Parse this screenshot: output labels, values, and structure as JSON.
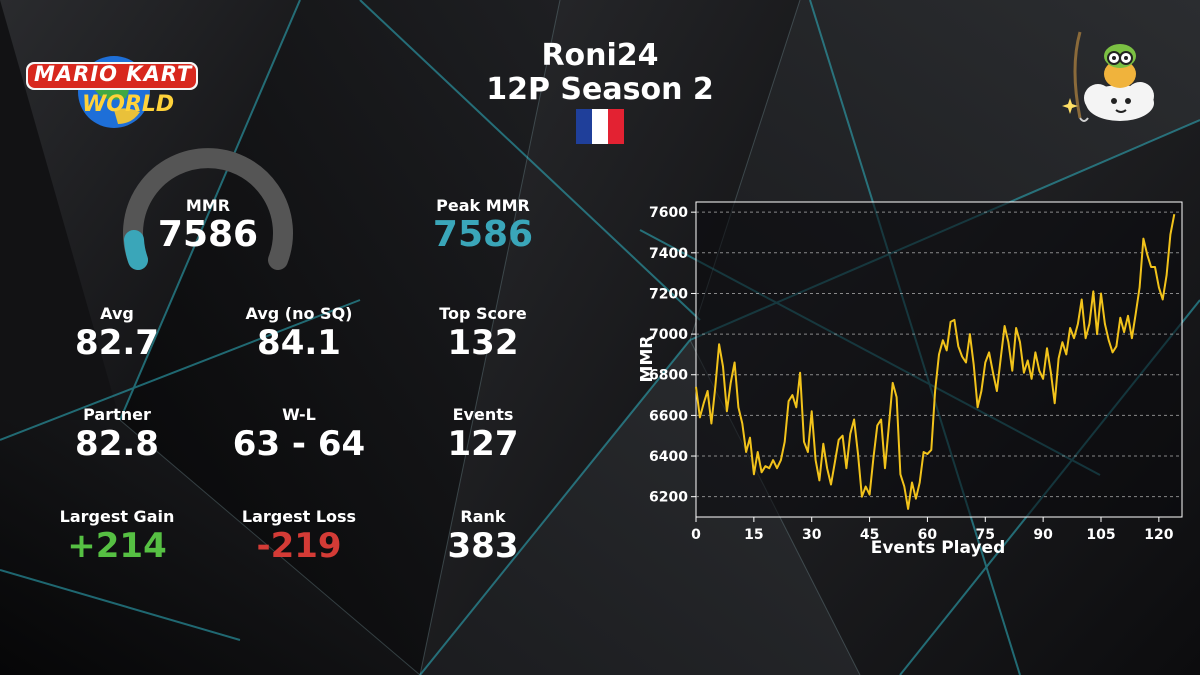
{
  "header": {
    "logo_top": "MARIO KART",
    "logo_bottom": "WORLD",
    "player_name": "Roni24",
    "season": "12P Season 2",
    "flag_colors": [
      "#1f3f9a",
      "#ffffff",
      "#e32232"
    ]
  },
  "mascot": {
    "icon": "lakitu-on-cloud-icon"
  },
  "stats": {
    "mmr": {
      "label": "MMR",
      "value": "7586"
    },
    "peak_mmr": {
      "label": "Peak MMR",
      "value": "7586"
    },
    "avg": {
      "label": "Avg",
      "value": "82.7"
    },
    "avg_no_sq": {
      "label": "Avg (no SQ)",
      "value": "84.1"
    },
    "top_score": {
      "label": "Top Score",
      "value": "132"
    },
    "partner": {
      "label": "Partner",
      "value": "82.8"
    },
    "wl": {
      "label": "W-L",
      "value": "63 - 64"
    },
    "events": {
      "label": "Events",
      "value": "127"
    },
    "largest_gain": {
      "label": "Largest Gain",
      "value": "+214"
    },
    "largest_loss": {
      "label": "Largest Loss",
      "value": "-219"
    },
    "rank": {
      "label": "Rank",
      "value": "383"
    }
  },
  "colors": {
    "accent": "#3aa6b9",
    "gain": "#56c043",
    "loss": "#d43b36",
    "line": "#f2c31b",
    "gauge_track": "#555555"
  },
  "chart_data": {
    "type": "line",
    "xlabel": "Events Played",
    "ylabel": "MMR",
    "xlim": [
      0,
      126
    ],
    "ylim": [
      6100,
      7650
    ],
    "xticks": [
      0,
      15,
      30,
      45,
      60,
      75,
      90,
      105,
      120
    ],
    "yticks": [
      6200,
      6400,
      6600,
      6800,
      7000,
      7200,
      7400,
      7600
    ],
    "grid": "horizontal dashed",
    "series": [
      {
        "values": [
          6740,
          6590,
          6660,
          6720,
          6560,
          6740,
          6950,
          6840,
          6620,
          6760,
          6860,
          6640,
          6560,
          6420,
          6490,
          6310,
          6420,
          6320,
          6350,
          6340,
          6380,
          6340,
          6380,
          6470,
          6670,
          6700,
          6640,
          6810,
          6470,
          6420,
          6620,
          6380,
          6280,
          6460,
          6340,
          6260,
          6370,
          6480,
          6500,
          6340,
          6510,
          6580,
          6410,
          6200,
          6250,
          6210,
          6390,
          6550,
          6580,
          6340,
          6550,
          6760,
          6690,
          6310,
          6250,
          6140,
          6270,
          6190,
          6270,
          6420,
          6410,
          6430,
          6720,
          6900,
          6970,
          6920,
          7060,
          7070,
          6940,
          6890,
          6860,
          7000,
          6850,
          6640,
          6720,
          6860,
          6910,
          6810,
          6720,
          6880,
          7040,
          6960,
          6820,
          7030,
          6960,
          6810,
          6870,
          6780,
          6910,
          6820,
          6780,
          6930,
          6810,
          6660,
          6880,
          6960,
          6900,
          7030,
          6980,
          7050,
          7170,
          6980,
          7050,
          7210,
          7000,
          7200,
          7050,
          6970,
          6910,
          6940,
          7080,
          7010,
          7090,
          6980,
          7100,
          7230,
          7470,
          7390,
          7330,
          7330,
          7230,
          7170,
          7290,
          7490,
          7590
        ]
      }
    ]
  }
}
